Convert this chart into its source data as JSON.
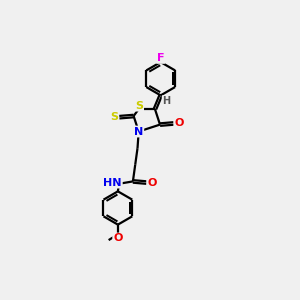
{
  "bg_color": "#f0f0f0",
  "atom_colors": {
    "C": "#000000",
    "N": "#0000ee",
    "O": "#ee0000",
    "S": "#cccc00",
    "F": "#ee00ee",
    "H": "#555555"
  },
  "bond_color": "#000000",
  "bond_lw": 1.6,
  "dbo": 0.055,
  "font_size": 8,
  "fig_size": [
    3.0,
    3.0
  ],
  "dpi": 100,
  "xlim": [
    0,
    10
  ],
  "ylim": [
    0,
    10
  ]
}
